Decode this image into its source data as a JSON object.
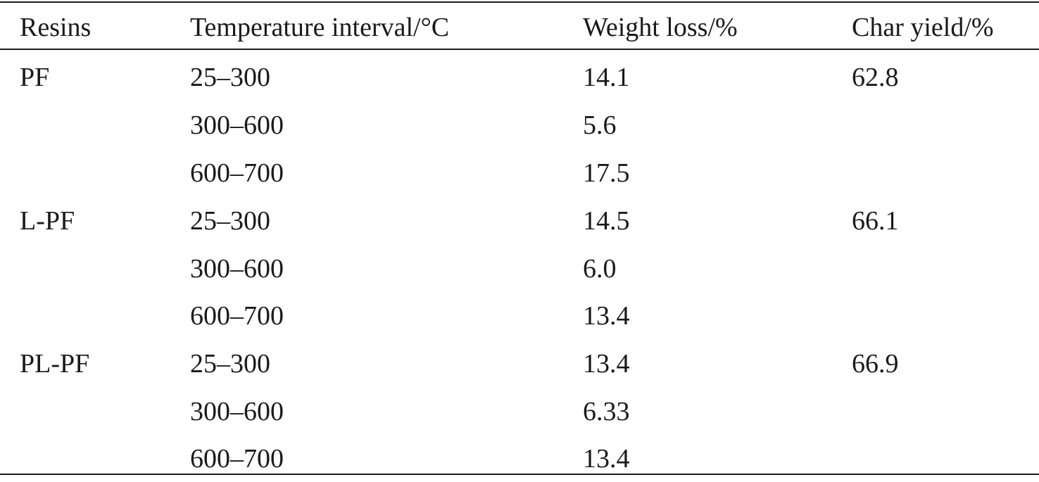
{
  "table": {
    "headers": {
      "resins": "Resins",
      "temperature": "Temperature interval/°C",
      "weight_loss": "Weight loss/%",
      "char_yield": "Char yield/%"
    },
    "rows": [
      {
        "resin": "PF",
        "interval": "25–300",
        "weight_loss": "14.1",
        "char_yield": "62.8"
      },
      {
        "resin": "",
        "interval": "300–600",
        "weight_loss": "5.6",
        "char_yield": ""
      },
      {
        "resin": "",
        "interval": "600–700",
        "weight_loss": "17.5",
        "char_yield": ""
      },
      {
        "resin": "L-PF",
        "interval": "25–300",
        "weight_loss": "14.5",
        "char_yield": "66.1"
      },
      {
        "resin": "",
        "interval": "300–600",
        "weight_loss": "6.0",
        "char_yield": ""
      },
      {
        "resin": "",
        "interval": "600–700",
        "weight_loss": "13.4",
        "char_yield": ""
      },
      {
        "resin": "PL-PF",
        "interval": "25–300",
        "weight_loss": "13.4",
        "char_yield": "66.9"
      },
      {
        "resin": "",
        "interval": "300–600",
        "weight_loss": "6.33",
        "char_yield": ""
      },
      {
        "resin": "",
        "interval": "600–700",
        "weight_loss": "13.4",
        "char_yield": ""
      }
    ]
  }
}
